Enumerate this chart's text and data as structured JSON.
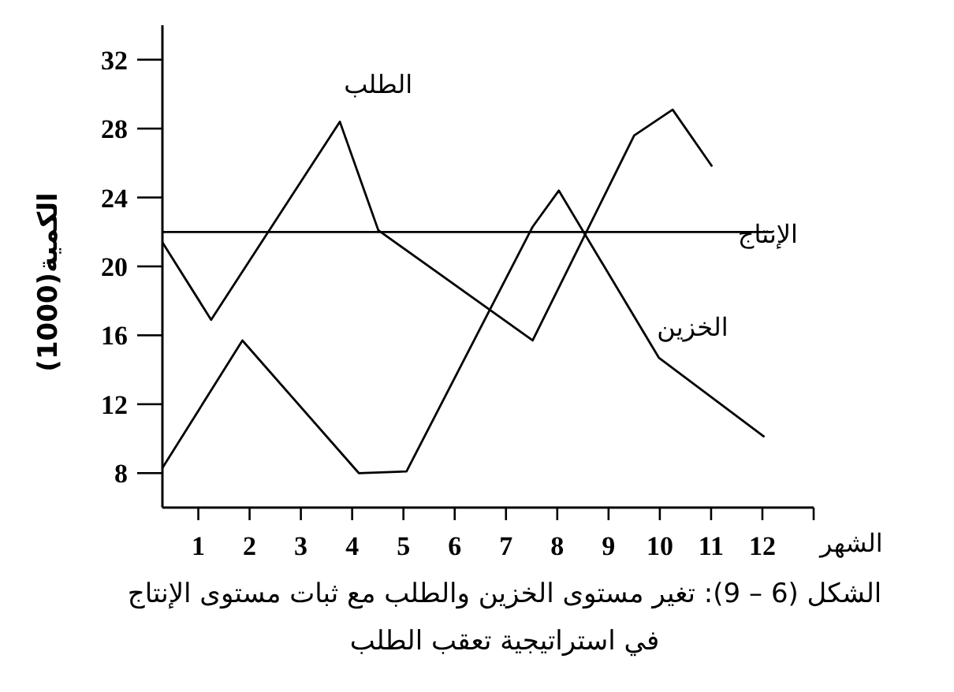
{
  "chart_data": {
    "type": "line",
    "ylabel": "الكمية(1000)",
    "xlabel": "الشهر",
    "annotations": [
      "الشكل (6 – 9): تغير مستوى الخزين والطلب مع ثبات مستوى الإنتاج في استراتيجية تعقب الطلب"
    ],
    "xlim": [
      0.3,
      13
    ],
    "xticks": [
      1,
      2,
      3,
      4,
      5,
      6,
      7,
      8,
      9,
      10,
      11,
      12,
      {
        "value": 13,
        "label": null
      }
    ],
    "ylim": [
      6,
      34
    ],
    "yticks": [
      8,
      12,
      16,
      20,
      24,
      28,
      32
    ],
    "grid": false,
    "marker": "none",
    "line_style": "solid",
    "series": [
      {
        "name": "الطلب",
        "color": "#000000",
        "x": [
          0.3,
          1.25,
          3.76,
          4.51,
          7.52,
          9.5,
          10.25,
          11.02
        ],
        "values": [
          21.4,
          16.9,
          28.4,
          22.1,
          15.7,
          27.6,
          29.1,
          25.8
        ]
      },
      {
        "name": "الخزين",
        "color": "#000000",
        "x": [
          0.3,
          1.86,
          4.13,
          5.06,
          7.52,
          8.03,
          9.98,
          12.04
        ],
        "values": [
          8.3,
          15.7,
          8.0,
          8.1,
          22.3,
          24.4,
          14.7,
          10.1
        ]
      },
      {
        "name": "الإنتاج",
        "color": "#000000",
        "x": [
          0.3,
          12.2
        ],
        "values": [
          22,
          22
        ]
      }
    ]
  }
}
